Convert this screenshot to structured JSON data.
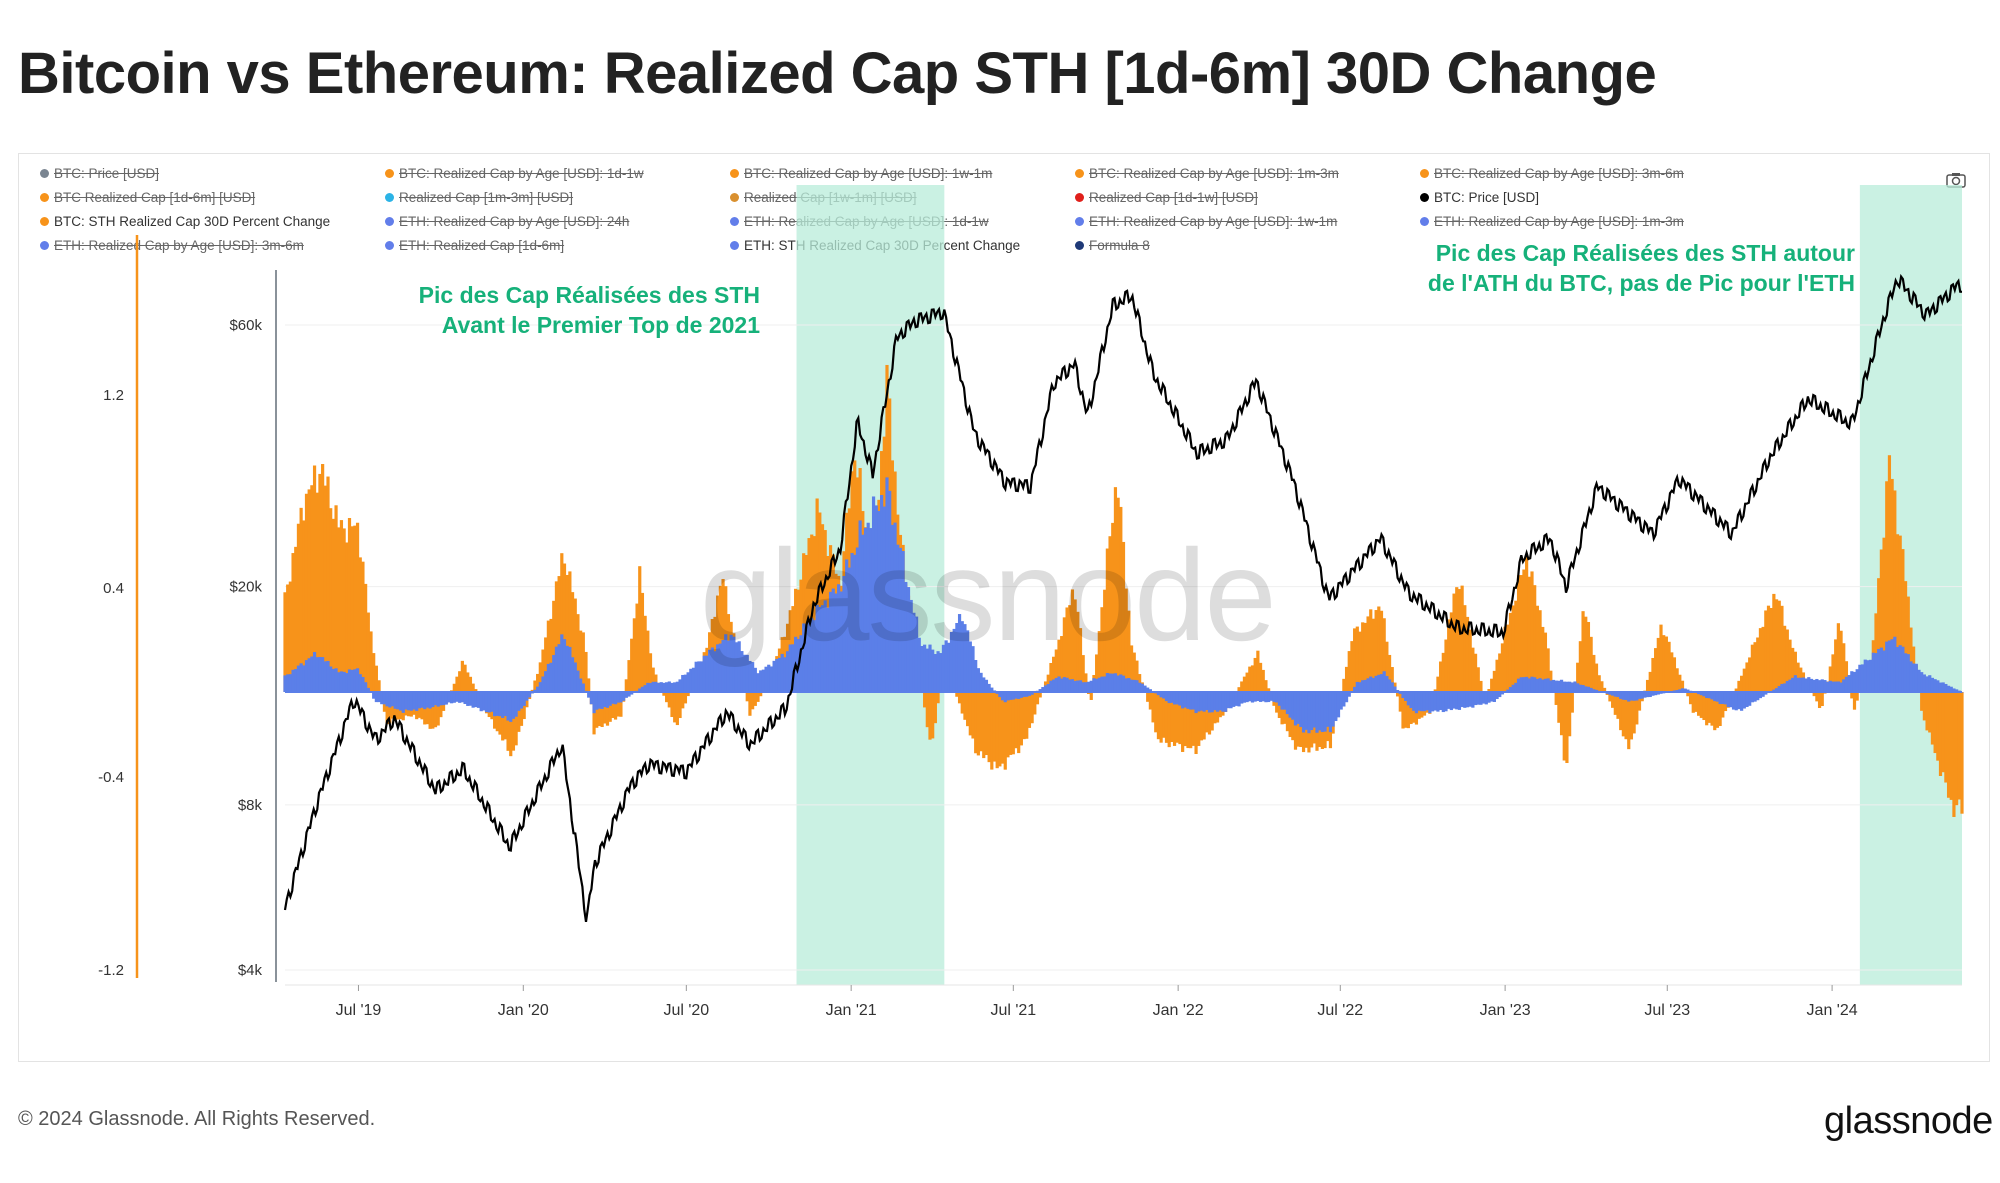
{
  "title": "Bitcoin vs Ethereum: Realized Cap STH [1d-6m] 30D Change",
  "footer": "© 2024 Glassnode. All Rights Reserved.",
  "brand": "glassnode",
  "watermark": "glassnode",
  "icons": {
    "camera": "camera-icon"
  },
  "legend": [
    {
      "label": "BTC: Price [USD]",
      "color": "#7a8591",
      "disabled": true
    },
    {
      "label": "BTC: Realized Cap by Age [USD]: 1d-1w",
      "color": "#f7931a",
      "disabled": true
    },
    {
      "label": "BTC: Realized Cap by Age [USD]: 1w-1m",
      "color": "#f7931a",
      "disabled": true
    },
    {
      "label": "BTC: Realized Cap by Age [USD]: 1m-3m",
      "color": "#f7931a",
      "disabled": true
    },
    {
      "label": "BTC: Realized Cap by Age [USD]: 3m-6m",
      "color": "#f7931a",
      "disabled": true
    },
    {
      "label": "BTC Realized Cap [1d-6m] [USD]",
      "color": "#f7931a",
      "disabled": true
    },
    {
      "label": "Realized Cap [1m-3m] [USD]",
      "color": "#2bb3e6",
      "disabled": true
    },
    {
      "label": "Realized Cap [1w-1m] [USD]",
      "color": "#d9902f",
      "disabled": true
    },
    {
      "label": "Realized Cap [1d-1w] [USD]",
      "color": "#e0201b",
      "disabled": true
    },
    {
      "label": "BTC: Price [USD]",
      "color": "#000000",
      "disabled": false
    },
    {
      "label": "BTC: STH Realized Cap 30D Percent Change",
      "color": "#f7931a",
      "disabled": false
    },
    {
      "label": "ETH: Realized Cap by Age [USD]: 24h",
      "color": "#627eea",
      "disabled": true
    },
    {
      "label": "ETH: Realized Cap by Age [USD]: 1d-1w",
      "color": "#627eea",
      "disabled": true
    },
    {
      "label": "ETH: Realized Cap by Age [USD]: 1w-1m",
      "color": "#627eea",
      "disabled": true
    },
    {
      "label": "ETH: Realized Cap by Age [USD]: 1m-3m",
      "color": "#627eea",
      "disabled": true
    },
    {
      "label": "ETH: Realized Cap by Age [USD]: 3m-6m",
      "color": "#627eea",
      "disabled": true
    },
    {
      "label": "ETH: Realized Cap [1d-6m]",
      "color": "#627eea",
      "disabled": true
    },
    {
      "label": "ETH: STH Realized Cap 30D Percent Change",
      "color": "#627eea",
      "disabled": false
    },
    {
      "label": "Formula 8",
      "color": "#1f3a78",
      "disabled": true
    }
  ],
  "annotations": [
    {
      "text": "Pic des Cap Réalisées des STH\nAvant le Premier Top de 2021"
    },
    {
      "text": "Pic des Cap Réalisées des STH autour\nde l'ATH du BTC, pas de Pic pour l'ETH"
    }
  ],
  "chart_data": {
    "type": "line",
    "x_range": [
      "2019-04-10",
      "2024-05-25"
    ],
    "x_ticks": [
      "Jul '19",
      "Jan '20",
      "Jul '20",
      "Jan '21",
      "Jul '21",
      "Jan '22",
      "Jul '22",
      "Jan '23",
      "Jul '23",
      "Jan '24"
    ],
    "y_left": {
      "scale": "linear",
      "ticks": [
        "1.2",
        "0.4",
        "-0.4",
        "-1.2"
      ],
      "range": [
        -1.2,
        1.2
      ]
    },
    "y_price": {
      "scale": "log",
      "ticks": [
        "$60k",
        "$20k",
        "$8k",
        "$4k"
      ],
      "range": [
        4000,
        60000
      ]
    },
    "highlight_bands": [
      {
        "from": "2020-11-01",
        "to": "2021-04-15",
        "color": "#b8ecd9"
      },
      {
        "from": "2024-02-01",
        "to": "2024-05-25",
        "color": "#b8ecd9"
      }
    ],
    "colors": {
      "btc_change": "#f7931a",
      "eth_change": "#5b7fe8",
      "price": "#000000",
      "band": "#b8ecd9"
    },
    "series": [
      {
        "name": "BTC: Price [USD]",
        "axis": "price",
        "points": [
          [
            "2019-04-10",
            5200
          ],
          [
            "2019-05-15",
            8000
          ],
          [
            "2019-06-26",
            12500
          ],
          [
            "2019-07-20",
            10500
          ],
          [
            "2019-08-10",
            11500
          ],
          [
            "2019-09-25",
            8500
          ],
          [
            "2019-10-26",
            9300
          ],
          [
            "2019-12-17",
            6700
          ],
          [
            "2020-02-13",
            10300
          ],
          [
            "2020-03-12",
            4900
          ],
          [
            "2020-03-20",
            6200
          ],
          [
            "2020-04-30",
            8700
          ],
          [
            "2020-05-20",
            9500
          ],
          [
            "2020-07-01",
            9200
          ],
          [
            "2020-08-15",
            11800
          ],
          [
            "2020-09-10",
            10300
          ],
          [
            "2020-10-20",
            12000
          ],
          [
            "2020-11-20",
            18500
          ],
          [
            "2020-12-20",
            23500
          ],
          [
            "2021-01-08",
            40000
          ],
          [
            "2021-01-25",
            32000
          ],
          [
            "2021-02-21",
            57000
          ],
          [
            "2021-03-13",
            61000
          ],
          [
            "2021-04-14",
            63500
          ],
          [
            "2021-05-19",
            38000
          ],
          [
            "2021-06-22",
            31000
          ],
          [
            "2021-07-20",
            30500
          ],
          [
            "2021-08-15",
            47000
          ],
          [
            "2021-09-07",
            51000
          ],
          [
            "2021-09-22",
            41000
          ],
          [
            "2021-10-20",
            65000
          ],
          [
            "2021-11-10",
            68000
          ],
          [
            "2021-12-04",
            49000
          ],
          [
            "2022-01-22",
            35000
          ],
          [
            "2022-02-24",
            37000
          ],
          [
            "2022-03-29",
            47500
          ],
          [
            "2022-05-10",
            31000
          ],
          [
            "2022-06-18",
            19000
          ],
          [
            "2022-08-15",
            24500
          ],
          [
            "2022-09-15",
            19500
          ],
          [
            "2022-11-09",
            16800
          ],
          [
            "2022-12-30",
            16500
          ],
          [
            "2023-01-20",
            22500
          ],
          [
            "2023-02-20",
            24500
          ],
          [
            "2023-03-10",
            20000
          ],
          [
            "2023-04-14",
            30500
          ],
          [
            "2023-06-15",
            25000
          ],
          [
            "2023-07-14",
            31500
          ],
          [
            "2023-09-11",
            25000
          ],
          [
            "2023-10-24",
            34500
          ],
          [
            "2023-12-05",
            44000
          ],
          [
            "2024-01-23",
            39500
          ],
          [
            "2024-02-28",
            62000
          ],
          [
            "2024-03-14",
            73000
          ],
          [
            "2024-04-15",
            62500
          ],
          [
            "2024-05-20",
            71000
          ]
        ]
      },
      {
        "name": "BTC: STH Realized Cap 30D Percent Change",
        "axis": "left",
        "points": [
          [
            "2019-04-10",
            0.48
          ],
          [
            "2019-05-01",
            0.98
          ],
          [
            "2019-05-20",
            1.16
          ],
          [
            "2019-06-10",
            0.85
          ],
          [
            "2019-07-01",
            0.85
          ],
          [
            "2019-07-15",
            0.3
          ],
          [
            "2019-08-01",
            -0.16
          ],
          [
            "2019-09-01",
            -0.12
          ],
          [
            "2019-09-25",
            -0.2
          ],
          [
            "2019-10-26",
            0.16
          ],
          [
            "2019-11-20",
            -0.1
          ],
          [
            "2019-12-20",
            -0.33
          ],
          [
            "2020-01-20",
            0.15
          ],
          [
            "2020-02-15",
            0.72
          ],
          [
            "2020-03-10",
            0.25
          ],
          [
            "2020-03-20",
            -0.2
          ],
          [
            "2020-04-20",
            -0.12
          ],
          [
            "2020-05-10",
            0.6
          ],
          [
            "2020-05-25",
            0.12
          ],
          [
            "2020-06-20",
            -0.18
          ],
          [
            "2020-07-25",
            0.25
          ],
          [
            "2020-08-10",
            0.6
          ],
          [
            "2020-09-10",
            -0.12
          ],
          [
            "2020-10-01",
            0.05
          ],
          [
            "2020-10-25",
            0.4
          ],
          [
            "2020-11-25",
            0.95
          ],
          [
            "2020-12-20",
            0.55
          ],
          [
            "2021-01-05",
            1.25
          ],
          [
            "2021-01-25",
            0.6
          ],
          [
            "2021-02-10",
            1.6
          ],
          [
            "2021-02-25",
            0.8
          ],
          [
            "2021-03-15",
            0.2
          ],
          [
            "2021-03-31",
            -0.3
          ],
          [
            "2021-04-15",
            0.15
          ],
          [
            "2021-05-01",
            -0.05
          ],
          [
            "2021-05-20",
            -0.3
          ],
          [
            "2021-06-15",
            -0.4
          ],
          [
            "2021-07-15",
            -0.25
          ],
          [
            "2021-08-20",
            0.25
          ],
          [
            "2021-09-07",
            0.55
          ],
          [
            "2021-09-25",
            -0.08
          ],
          [
            "2021-10-25",
            1.12
          ],
          [
            "2021-11-10",
            0.25
          ],
          [
            "2021-12-10",
            -0.25
          ],
          [
            "2022-01-20",
            -0.3
          ],
          [
            "2022-02-20",
            -0.12
          ],
          [
            "2022-03-31",
            0.2
          ],
          [
            "2022-04-20",
            -0.1
          ],
          [
            "2022-05-15",
            -0.3
          ],
          [
            "2022-06-20",
            -0.28
          ],
          [
            "2022-07-15",
            0.3
          ],
          [
            "2022-08-15",
            0.45
          ],
          [
            "2022-09-10",
            -0.2
          ],
          [
            "2022-10-10",
            -0.1
          ],
          [
            "2022-11-10",
            0.6
          ],
          [
            "2022-12-10",
            -0.05
          ],
          [
            "2023-01-25",
            0.7
          ],
          [
            "2023-02-15",
            0.3
          ],
          [
            "2023-03-10",
            -0.4
          ],
          [
            "2023-03-30",
            0.45
          ],
          [
            "2023-04-15",
            0.1
          ],
          [
            "2023-05-20",
            -0.3
          ],
          [
            "2023-06-25",
            0.35
          ],
          [
            "2023-07-30",
            -0.1
          ],
          [
            "2023-08-25",
            -0.2
          ],
          [
            "2023-09-10",
            -0.05
          ],
          [
            "2023-10-30",
            0.52
          ],
          [
            "2023-11-20",
            0.2
          ],
          [
            "2023-12-20",
            -0.1
          ],
          [
            "2024-01-10",
            0.38
          ],
          [
            "2024-01-25",
            -0.1
          ],
          [
            "2024-02-15",
            0.2
          ],
          [
            "2024-03-05",
            1.2
          ],
          [
            "2024-03-20",
            0.7
          ],
          [
            "2024-04-10",
            -0.1
          ],
          [
            "2024-05-15",
            -0.6
          ],
          [
            "2024-05-25",
            -0.6
          ]
        ]
      },
      {
        "name": "ETH: STH Realized Cap 30D Percent Change",
        "axis": "left",
        "points": [
          [
            "2019-04-10",
            0.08
          ],
          [
            "2019-05-15",
            0.2
          ],
          [
            "2019-06-10",
            0.1
          ],
          [
            "2019-07-01",
            0.12
          ],
          [
            "2019-07-20",
            -0.05
          ],
          [
            "2019-08-20",
            -0.1
          ],
          [
            "2019-09-20",
            -0.08
          ],
          [
            "2019-10-20",
            -0.05
          ],
          [
            "2019-11-20",
            -0.1
          ],
          [
            "2019-12-20",
            -0.15
          ],
          [
            "2020-01-20",
            0.05
          ],
          [
            "2020-02-15",
            0.3
          ],
          [
            "2020-03-20",
            -0.1
          ],
          [
            "2020-04-20",
            -0.05
          ],
          [
            "2020-05-20",
            0.05
          ],
          [
            "2020-06-20",
            0.05
          ],
          [
            "2020-07-25",
            0.2
          ],
          [
            "2020-08-20",
            0.3
          ],
          [
            "2020-09-20",
            0.1
          ],
          [
            "2020-10-20",
            0.2
          ],
          [
            "2020-11-20",
            0.4
          ],
          [
            "2020-12-20",
            0.55
          ],
          [
            "2021-01-10",
            0.8
          ],
          [
            "2021-02-10",
            1.05
          ],
          [
            "2021-03-01",
            0.65
          ],
          [
            "2021-03-20",
            0.25
          ],
          [
            "2021-04-10",
            0.2
          ],
          [
            "2021-05-05",
            0.4
          ],
          [
            "2021-05-25",
            0.1
          ],
          [
            "2021-06-20",
            -0.05
          ],
          [
            "2021-07-20",
            -0.02
          ],
          [
            "2021-08-20",
            0.08
          ],
          [
            "2021-09-20",
            0.05
          ],
          [
            "2021-10-20",
            0.1
          ],
          [
            "2021-11-20",
            0.05
          ],
          [
            "2021-12-20",
            -0.05
          ],
          [
            "2022-01-20",
            -0.1
          ],
          [
            "2022-02-20",
            -0.1
          ],
          [
            "2022-03-20",
            -0.05
          ],
          [
            "2022-04-20",
            -0.05
          ],
          [
            "2022-05-20",
            -0.2
          ],
          [
            "2022-06-20",
            -0.2
          ],
          [
            "2022-07-20",
            0.05
          ],
          [
            "2022-08-20",
            0.1
          ],
          [
            "2022-09-20",
            -0.1
          ],
          [
            "2022-10-20",
            -0.1
          ],
          [
            "2022-11-20",
            -0.08
          ],
          [
            "2022-12-20",
            -0.05
          ],
          [
            "2023-01-20",
            0.08
          ],
          [
            "2023-03-20",
            0.05
          ],
          [
            "2023-05-20",
            -0.05
          ],
          [
            "2023-07-20",
            0.02
          ],
          [
            "2023-09-20",
            -0.1
          ],
          [
            "2023-11-20",
            0.08
          ],
          [
            "2024-01-10",
            0.05
          ],
          [
            "2024-03-10",
            0.28
          ],
          [
            "2024-04-10",
            0.1
          ],
          [
            "2024-05-25",
            0.0
          ]
        ]
      }
    ]
  }
}
